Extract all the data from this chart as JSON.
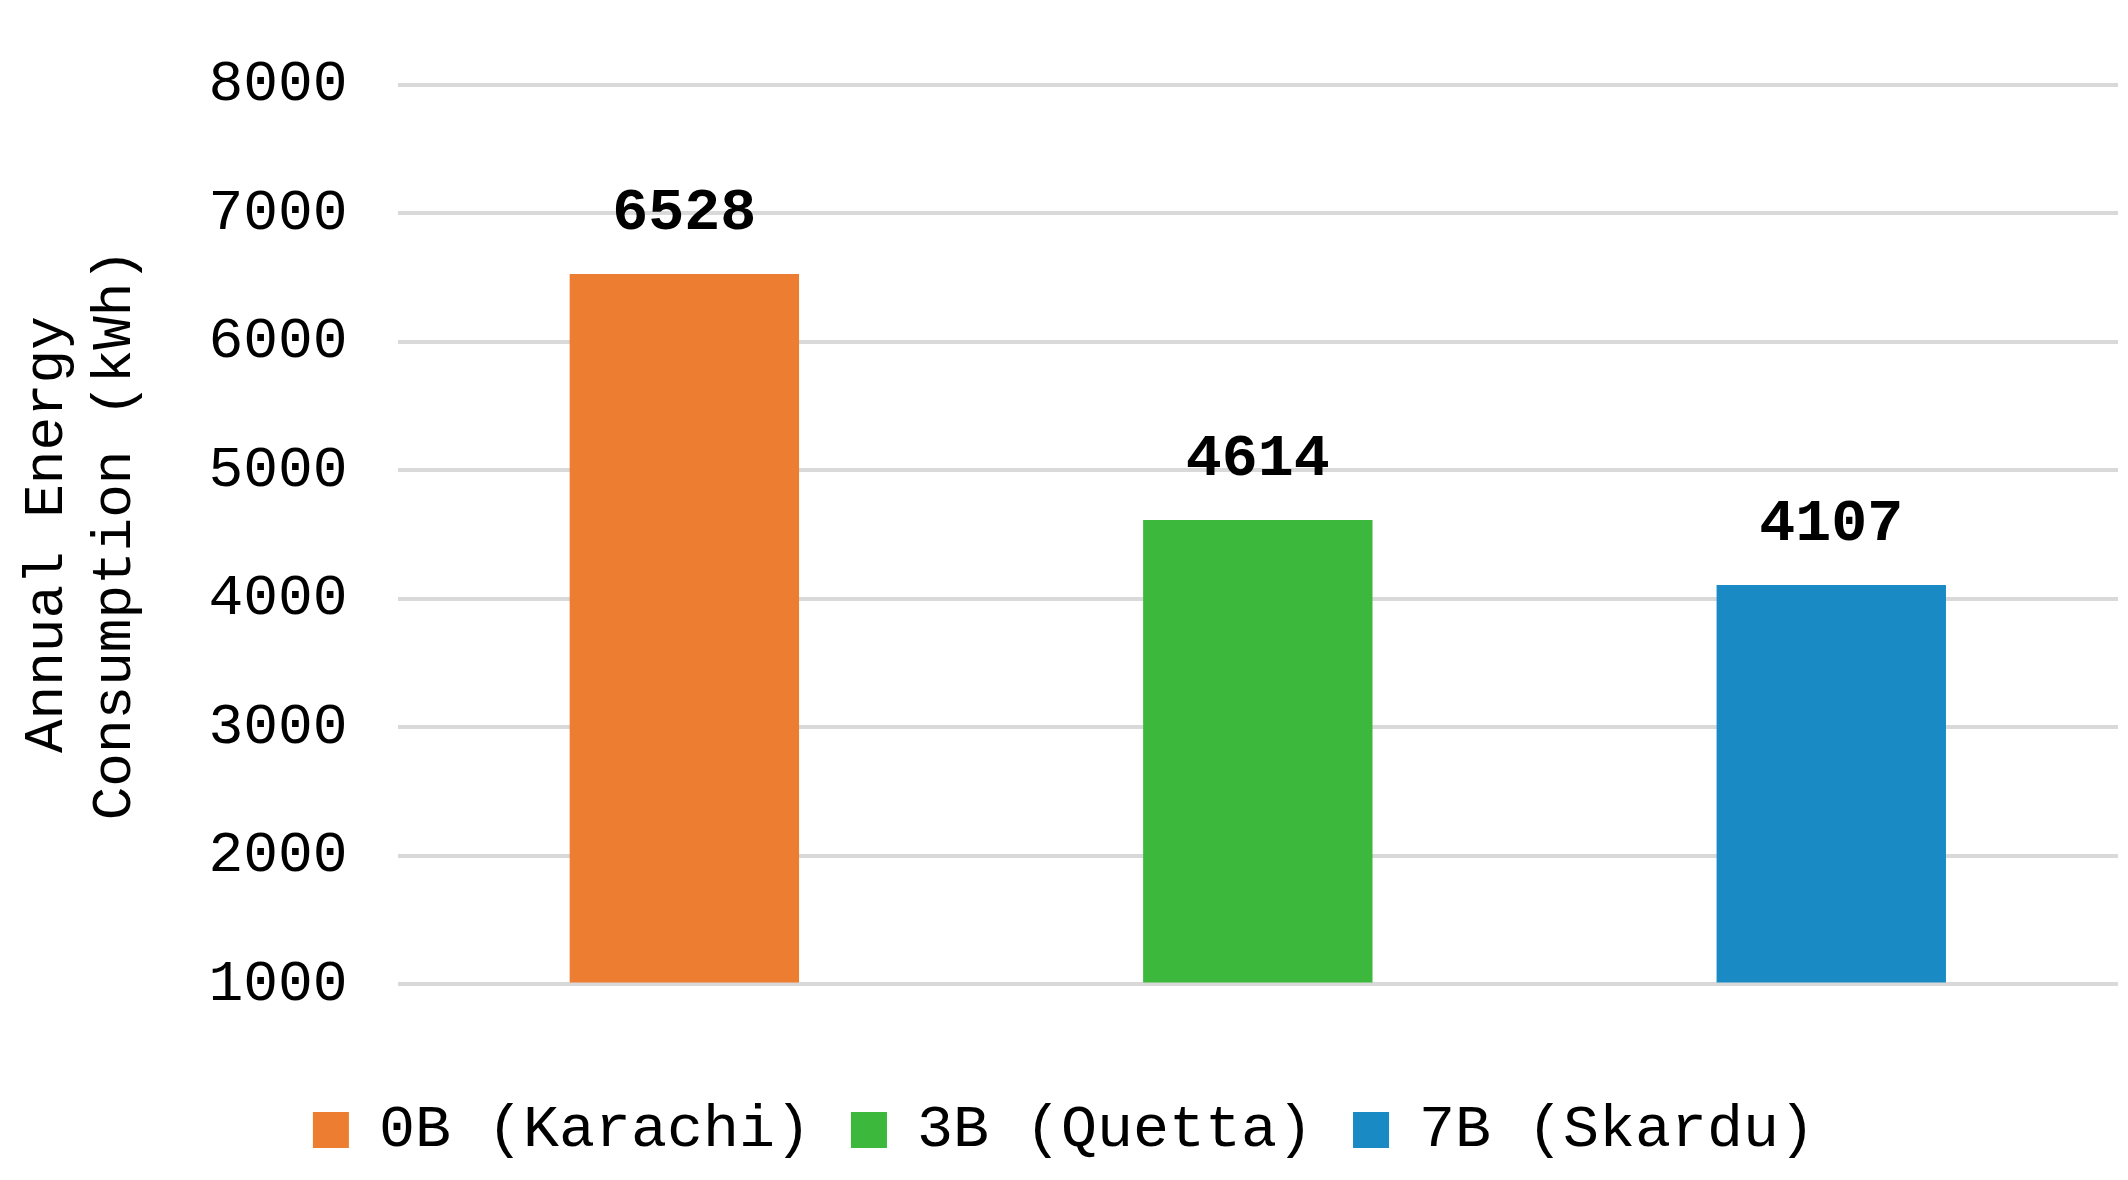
{
  "chart_data": {
    "type": "bar",
    "ylabel": "Annual Energy Consumption (kWh)",
    "categories": [
      null,
      null,
      null
    ],
    "series": [
      {
        "name": "0B (Karachi)",
        "color": "#ed7d31",
        "values": [
          6528,
          null,
          null
        ]
      },
      {
        "name": "3B (Quetta)",
        "color": "#3cb93c",
        "values": [
          null,
          4614,
          null
        ]
      },
      {
        "name": "7B (Skardu)",
        "color": "#1a8ac4",
        "values": [
          null,
          null,
          4107
        ]
      }
    ],
    "ylim": [
      1000,
      8000
    ],
    "yticks": [
      1000,
      2000,
      3000,
      4000,
      5000,
      6000,
      7000,
      8000
    ],
    "grid": "y",
    "legend": "bottom",
    "data_labels": true
  }
}
